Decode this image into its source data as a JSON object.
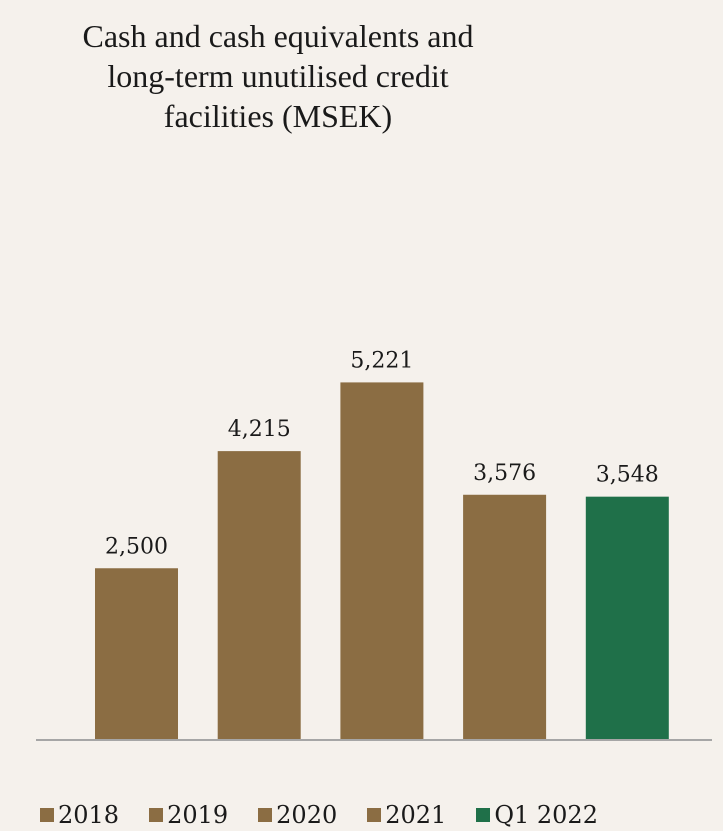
{
  "chart_data": {
    "type": "bar",
    "title_lines": [
      "Cash and cash equivalents and",
      "long-term unutilised credit",
      "facilities (MSEK)"
    ],
    "categories": [
      "2018",
      "2019",
      "2020",
      "2021",
      "Q1 2022"
    ],
    "values": [
      2500,
      4215,
      5221,
      3576,
      3548
    ],
    "value_labels": [
      "2,500",
      "4,215",
      "5,221",
      "3,576",
      "3,548"
    ],
    "colors": [
      "#8b6d43",
      "#8b6d43",
      "#8b6d43",
      "#8b6d43",
      "#1f7049"
    ],
    "ylim": [
      0,
      6250
    ],
    "grid": false,
    "legend_position": "bottom",
    "legend": [
      {
        "label": "2018",
        "color": "#8b6d43"
      },
      {
        "label": "2019",
        "color": "#8b6d43"
      },
      {
        "label": "2020",
        "color": "#8b6d43"
      },
      {
        "label": "2021",
        "color": "#8b6d43"
      },
      {
        "label": "Q1 2022",
        "color": "#1f7049"
      }
    ]
  }
}
